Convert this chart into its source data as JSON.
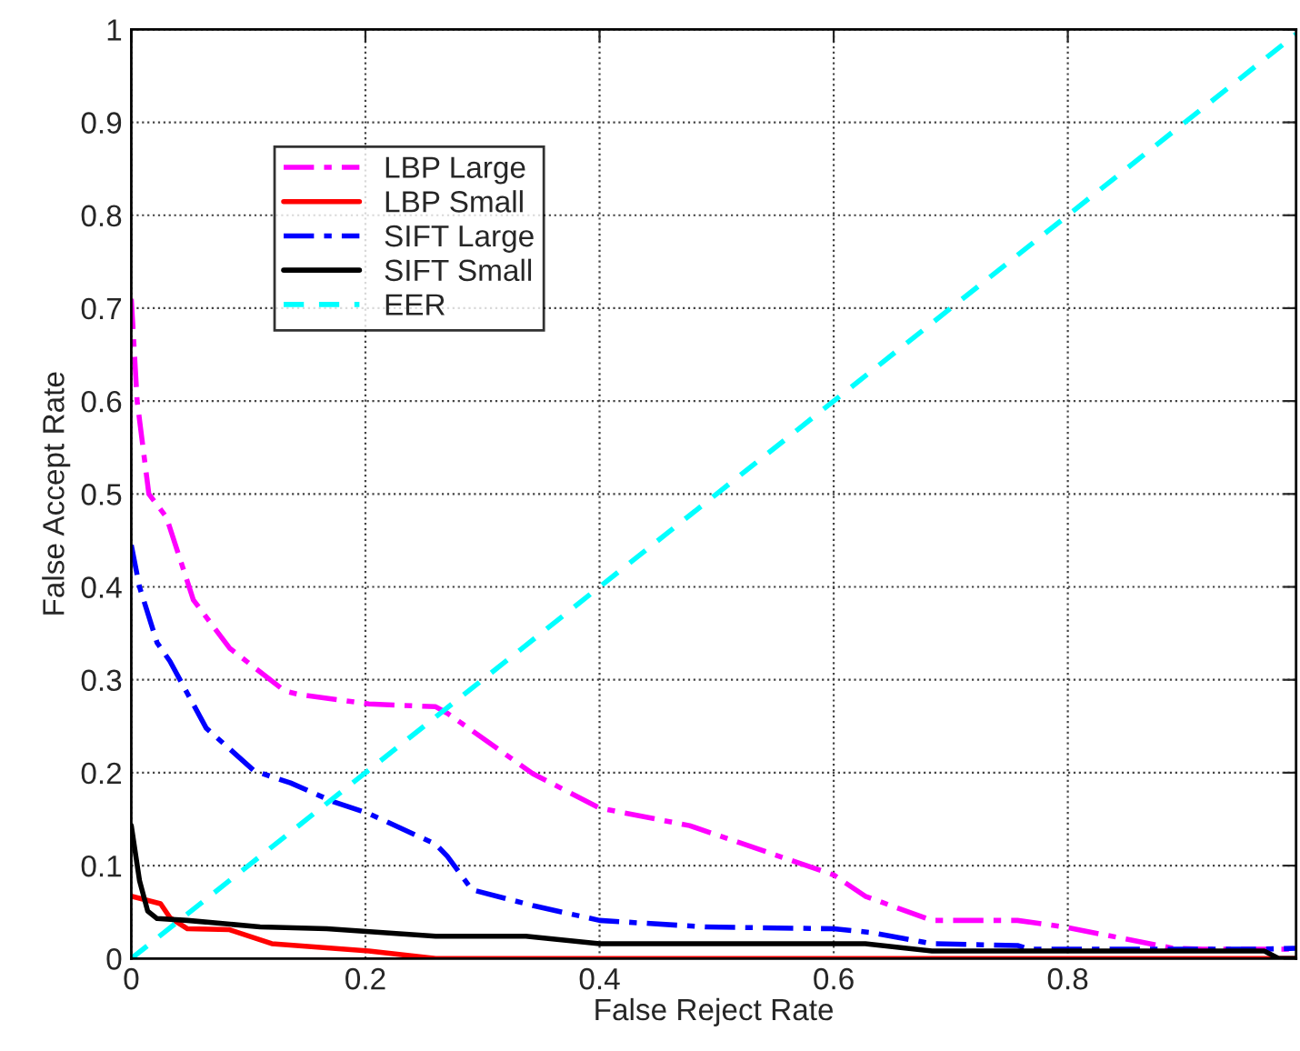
{
  "chart_data": {
    "type": "line",
    "xlabel": "False Reject Rate",
    "ylabel": "False Accept Rate",
    "xlim": [
      0,
      0.995
    ],
    "ylim": [
      0,
      1
    ],
    "xticks": [
      0,
      0.2,
      0.4,
      0.6,
      0.8
    ],
    "yticks": [
      0,
      0.1,
      0.2,
      0.3,
      0.4,
      0.5,
      0.6,
      0.7,
      0.8,
      0.9,
      1
    ],
    "grid": true,
    "legend": "top left",
    "series": [
      {
        "name": "LBP Large",
        "color": "#ff00ff",
        "line_style": "dashdot",
        "x": [
          0,
          0.005,
          0.015,
          0.03,
          0.053,
          0.084,
          0.131,
          0.144,
          0.203,
          0.26,
          0.27,
          0.343,
          0.4,
          0.477,
          0.6,
          0.627,
          0.684,
          0.757,
          0.797,
          0.89,
          0.915,
          0.995
        ],
        "values": [
          0.71,
          0.6,
          0.5,
          0.475,
          0.386,
          0.334,
          0.288,
          0.284,
          0.274,
          0.271,
          0.264,
          0.199,
          0.162,
          0.143,
          0.09,
          0.067,
          0.041,
          0.041,
          0.034,
          0.011,
          0.01,
          0.01
        ]
      },
      {
        "name": "LBP Small",
        "color": "#ff0000",
        "line_style": "solid",
        "x": [
          0,
          0.025,
          0.033,
          0.048,
          0.084,
          0.12,
          0.203,
          0.26,
          0.995
        ],
        "values": [
          0.067,
          0.059,
          0.044,
          0.032,
          0.031,
          0.016,
          0.008,
          0,
          0
        ]
      },
      {
        "name": "SIFT Large",
        "color": "#0000ff",
        "line_style": "dashdot",
        "x": [
          0,
          0.007,
          0.022,
          0.033,
          0.064,
          0.105,
          0.136,
          0.172,
          0.203,
          0.26,
          0.27,
          0.291,
          0.343,
          0.4,
          0.49,
          0.6,
          0.632,
          0.684,
          0.757,
          0.767,
          0.963,
          0.995
        ],
        "values": [
          0.445,
          0.4,
          0.34,
          0.32,
          0.248,
          0.202,
          0.189,
          0.169,
          0.156,
          0.123,
          0.11,
          0.074,
          0.057,
          0.041,
          0.034,
          0.032,
          0.028,
          0.016,
          0.014,
          0.01,
          0.01,
          0.011
        ]
      },
      {
        "name": "SIFT Small",
        "color": "#000000",
        "line_style": "solid",
        "x": [
          0,
          0.007,
          0.014,
          0.022,
          0.048,
          0.11,
          0.167,
          0.26,
          0.337,
          0.4,
          0.627,
          0.684,
          0.968,
          0.98,
          0.995
        ],
        "values": [
          0.143,
          0.084,
          0.051,
          0.043,
          0.041,
          0.034,
          0.032,
          0.024,
          0.024,
          0.016,
          0.016,
          0.008,
          0.008,
          0,
          0
        ]
      },
      {
        "name": "EER",
        "color": "#00ffff",
        "line_style": "dashed",
        "x": [
          0,
          0.995
        ],
        "values": [
          0,
          0.995
        ]
      }
    ]
  }
}
